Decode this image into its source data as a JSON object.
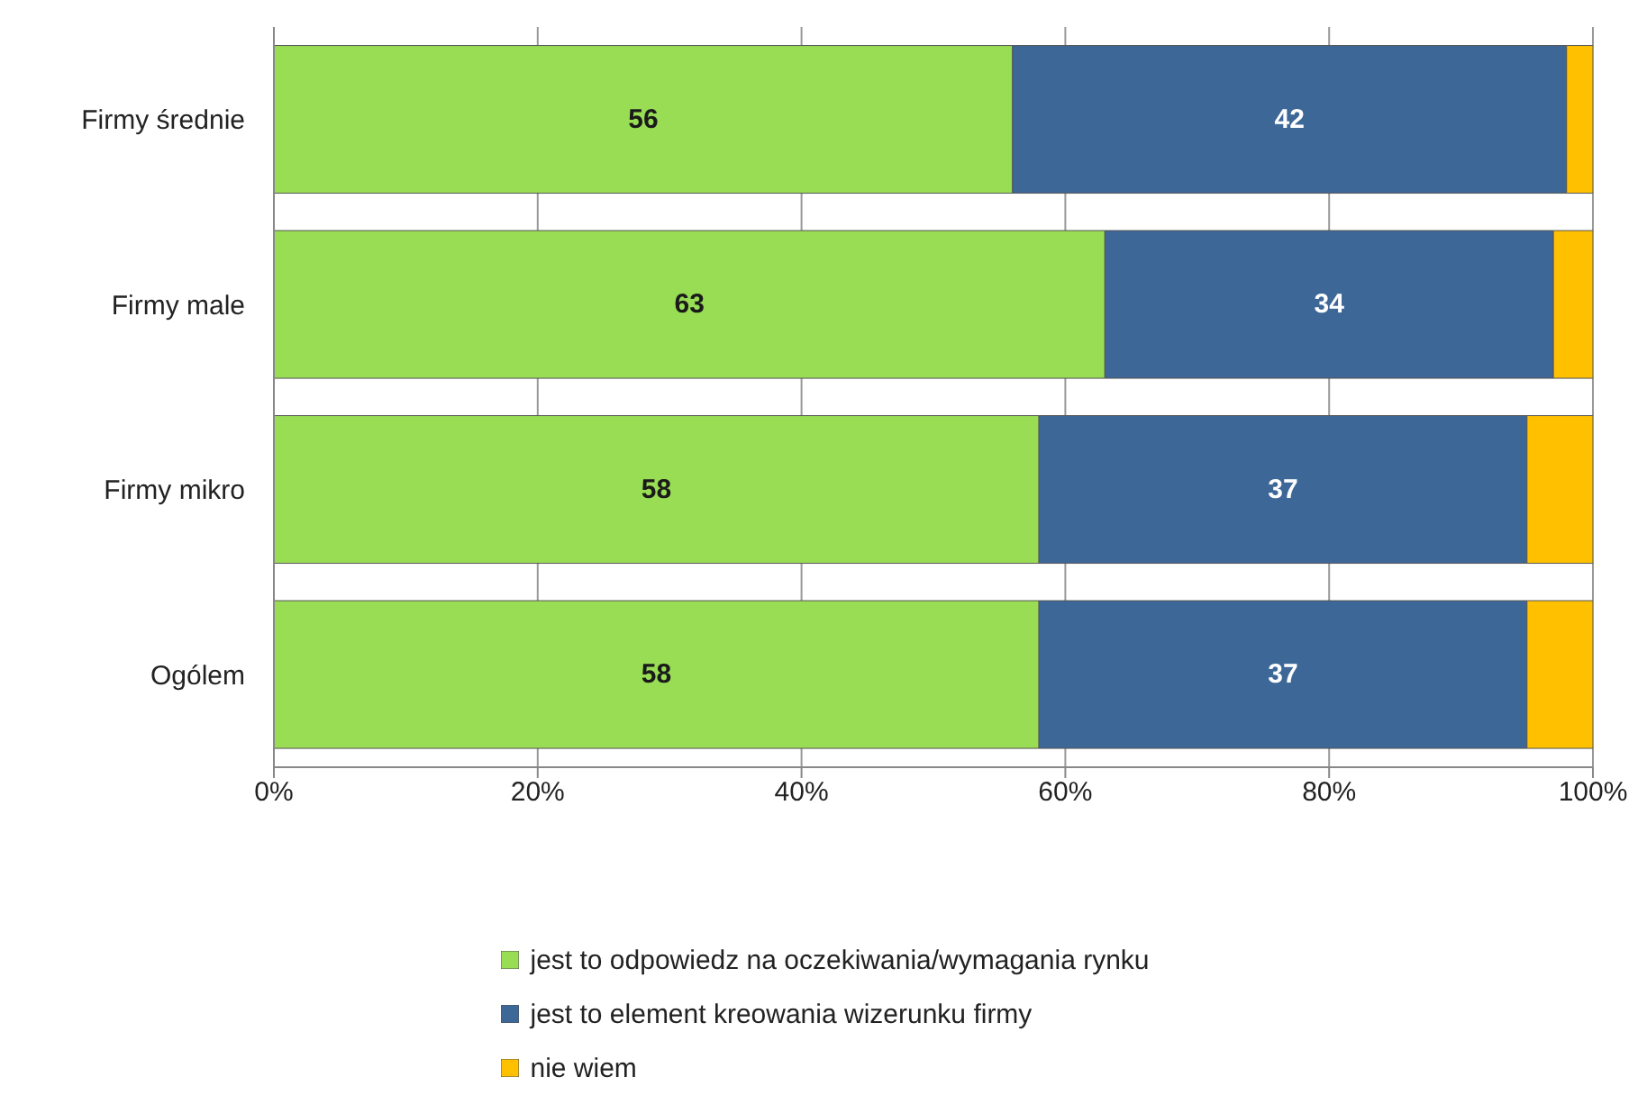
{
  "chart_data": {
    "type": "bar",
    "orientation": "horizontal",
    "stacked": true,
    "categories": [
      "Firmy średnie",
      "Firmy male",
      "Firmy mikro",
      "Ogólem"
    ],
    "series": [
      {
        "name": "jest to odpowiedz na oczekiwania/wymagania rynku",
        "color": "#99dd55",
        "values": [
          56,
          63,
          58,
          58
        ],
        "value_labels": [
          "56",
          "63",
          "58",
          "58"
        ]
      },
      {
        "name": "jest to element kreowania wizerunku firmy",
        "color": "#3c6797",
        "values": [
          42,
          34,
          37,
          37
        ],
        "value_labels": [
          "42",
          "34",
          "37",
          "37"
        ]
      },
      {
        "name": "nie wiem",
        "color": "#ffc000",
        "values": [
          2,
          3,
          5,
          5
        ]
      }
    ],
    "xlim": [
      0,
      100
    ],
    "xticks": [
      {
        "value": 0,
        "label": "0%"
      },
      {
        "value": 20,
        "label": "20%"
      },
      {
        "value": 40,
        "label": "40%"
      },
      {
        "value": 60,
        "label": "60%"
      },
      {
        "value": 80,
        "label": "80%"
      },
      {
        "value": 100,
        "label": "100%"
      }
    ],
    "grid": "x",
    "legend": "bottom"
  }
}
